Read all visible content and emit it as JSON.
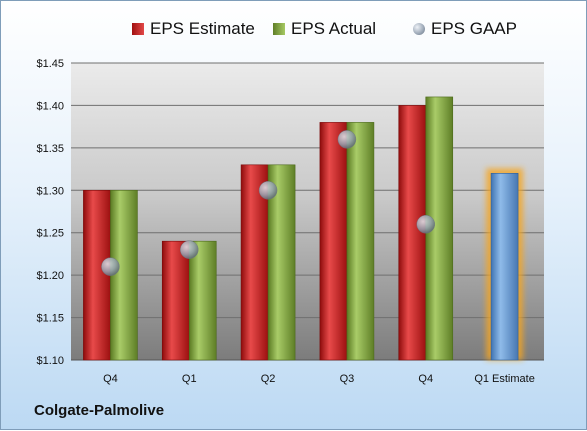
{
  "chart_data": {
    "type": "bar",
    "title": "",
    "xlabel": "",
    "ylabel": "",
    "categories": [
      "Q4",
      "Q1",
      "Q2",
      "Q3",
      "Q4",
      "Q1 Estimate"
    ],
    "ylim": [
      1.1,
      1.45
    ],
    "yticks": [
      1.1,
      1.15,
      1.2,
      1.25,
      1.3,
      1.35,
      1.4,
      1.45
    ],
    "ytick_labels": [
      "$1.10",
      "$1.15",
      "$1.20",
      "$1.25",
      "$1.30",
      "$1.35",
      "$1.40",
      "$1.45"
    ],
    "grid": true,
    "legend_position": "top",
    "series": [
      {
        "name": "EPS Estimate",
        "kind": "bar",
        "color": "#cc2222",
        "values": [
          1.3,
          1.24,
          1.33,
          1.38,
          1.4,
          null
        ]
      },
      {
        "name": "EPS Actual",
        "kind": "bar",
        "color": "#8cb04a",
        "values": [
          1.3,
          1.24,
          1.33,
          1.38,
          1.41,
          null
        ]
      },
      {
        "name": "EPS GAAP",
        "kind": "marker",
        "color": "#a9b4c2",
        "values": [
          1.21,
          1.23,
          1.3,
          1.36,
          1.26,
          null
        ]
      },
      {
        "name": "Q1 Estimate",
        "kind": "bar",
        "color": "#6fa3d8",
        "highlight": "#f5a623",
        "values": [
          null,
          null,
          null,
          null,
          null,
          1.32
        ]
      }
    ]
  },
  "footer": {
    "company": "Colgate-Palmolive"
  }
}
